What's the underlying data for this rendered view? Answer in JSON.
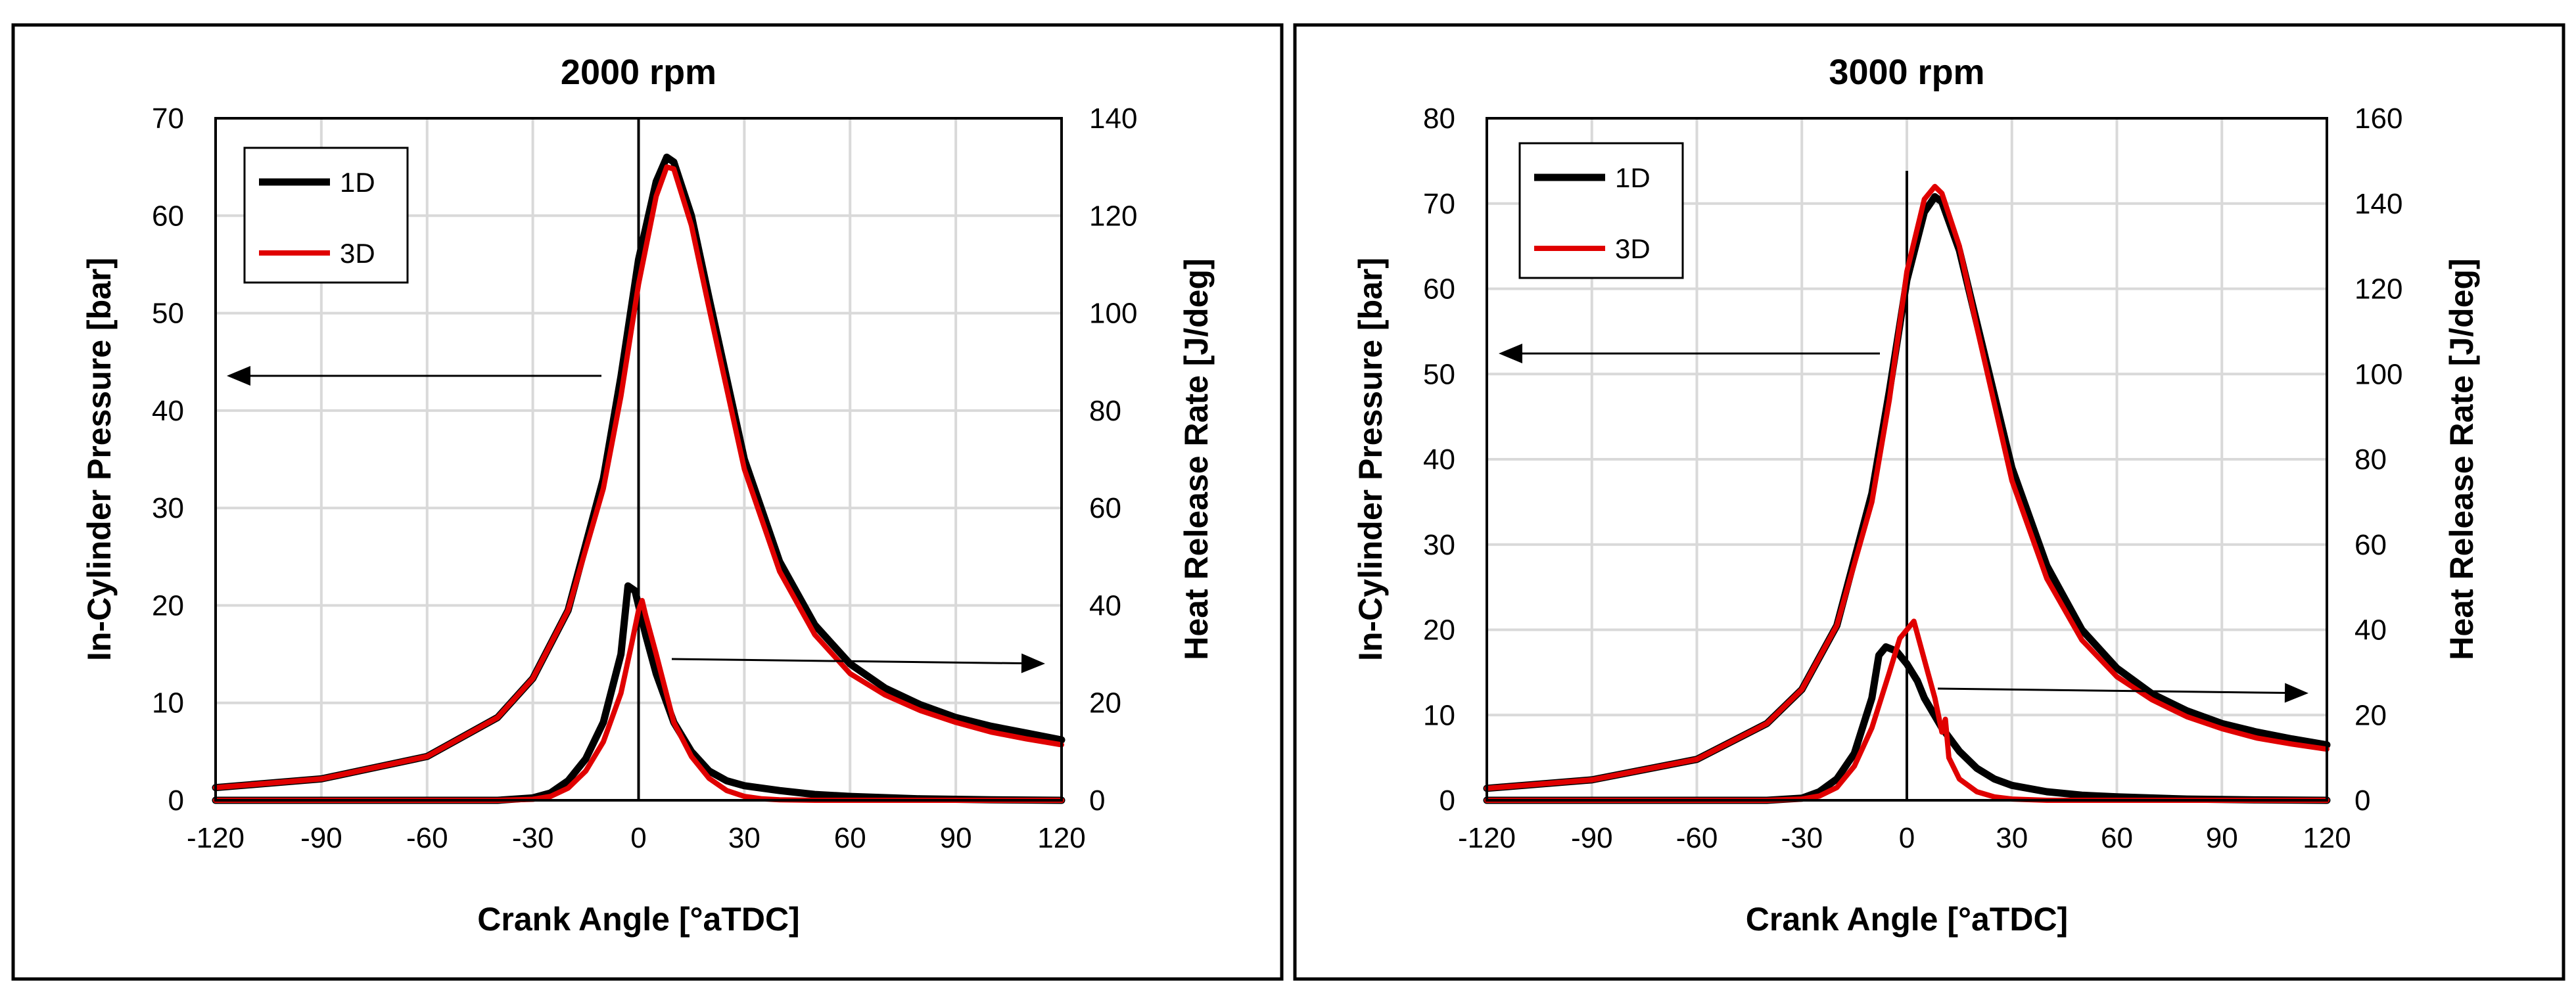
{
  "chart_data": [
    {
      "type": "line",
      "title": "2000 rpm",
      "xlabel": "Crank Angle [°aTDC]",
      "ylabel": "In-Cylinder Pressure [bar]",
      "y2label": "Heat Release Rate [J/deg]",
      "xlim": [
        -120,
        120
      ],
      "ylim": [
        0,
        70
      ],
      "y2lim": [
        0,
        140
      ],
      "xticks": [
        -120,
        -90,
        -60,
        -30,
        0,
        30,
        60,
        90,
        120
      ],
      "yticks": [
        0,
        10,
        20,
        30,
        40,
        50,
        60,
        70
      ],
      "y2ticks": [
        0,
        20,
        40,
        60,
        80,
        100,
        120,
        140
      ],
      "grid": true,
      "legend": {
        "position": "top-left",
        "entries": [
          "1D",
          "3D"
        ]
      },
      "annotations": [
        "arrow pointing to left axis (pressure curves)",
        "arrow pointing to right axis (heat release curves)"
      ],
      "series": [
        {
          "name": "1D",
          "quantity": "pressure",
          "axis": "left",
          "color": "#000000",
          "x": [
            -120,
            -90,
            -60,
            -40,
            -30,
            -20,
            -10,
            -5,
            0,
            5,
            8,
            10,
            15,
            20,
            30,
            40,
            50,
            60,
            70,
            80,
            90,
            100,
            110,
            120
          ],
          "y": [
            1.3,
            2.2,
            4.5,
            8.5,
            12.5,
            19.5,
            33,
            43.5,
            55.5,
            63.5,
            66,
            65.5,
            60,
            51.5,
            35,
            24.5,
            18,
            14,
            11.5,
            9.8,
            8.5,
            7.6,
            6.9,
            6.2
          ]
        },
        {
          "name": "3D",
          "quantity": "pressure",
          "axis": "left",
          "color": "#e00000",
          "x": [
            -120,
            -90,
            -60,
            -40,
            -30,
            -20,
            -10,
            -5,
            0,
            5,
            8,
            10,
            15,
            20,
            30,
            40,
            50,
            60,
            70,
            80,
            90,
            100,
            110,
            120
          ],
          "y": [
            1.3,
            2.2,
            4.5,
            8.5,
            12.5,
            19.5,
            32,
            41.5,
            53,
            62,
            65,
            64.8,
            59,
            50.5,
            34,
            23.5,
            17,
            13,
            10.8,
            9.2,
            8,
            7,
            6.3,
            5.7
          ]
        },
        {
          "name": "1D",
          "quantity": "heat release rate",
          "axis": "right",
          "color": "#000000",
          "x": [
            -120,
            -40,
            -30,
            -25,
            -20,
            -15,
            -10,
            -5,
            -3,
            -1,
            0,
            2,
            5,
            10,
            15,
            20,
            25,
            30,
            40,
            50,
            60,
            80,
            100,
            120
          ],
          "y": [
            0,
            0,
            0.5,
            1.5,
            4,
            8.5,
            16,
            30,
            44,
            43,
            40,
            34,
            26,
            16,
            10,
            6,
            4,
            3,
            2,
            1.2,
            0.8,
            0.3,
            0.1,
            0
          ]
        },
        {
          "name": "3D",
          "quantity": "heat release rate",
          "axis": "right",
          "color": "#e00000",
          "x": [
            -120,
            -40,
            -30,
            -25,
            -20,
            -15,
            -10,
            -5,
            -2,
            0,
            1,
            2,
            5,
            10,
            15,
            20,
            25,
            30,
            35,
            40,
            50,
            60,
            90,
            120
          ],
          "y": [
            0,
            0,
            0.2,
            0.8,
            2.5,
            6,
            12,
            22,
            32,
            39,
            41,
            38,
            30,
            16,
            9,
            4.5,
            2,
            0.8,
            0.3,
            0.1,
            0,
            0,
            0,
            0
          ]
        }
      ]
    },
    {
      "type": "line",
      "title": "3000 rpm",
      "xlabel": "Crank Angle [°aTDC]",
      "ylabel": "In-Cylinder Pressure [bar]",
      "y2label": "Heat Release Rate [J/deg]",
      "xlim": [
        -120,
        120
      ],
      "ylim": [
        0,
        80
      ],
      "y2lim": [
        0,
        160
      ],
      "xticks": [
        -120,
        -90,
        -60,
        -30,
        0,
        30,
        60,
        90,
        120
      ],
      "yticks": [
        0,
        10,
        20,
        30,
        40,
        50,
        60,
        70,
        80
      ],
      "y2ticks": [
        0,
        20,
        40,
        60,
        80,
        100,
        120,
        140,
        160
      ],
      "grid": true,
      "legend": {
        "position": "top-left",
        "entries": [
          "1D",
          "3D"
        ]
      },
      "annotations": [
        "arrow pointing to left axis (pressure curves)",
        "arrow pointing to right axis (heat release curves)"
      ],
      "series": [
        {
          "name": "1D",
          "quantity": "pressure",
          "axis": "left",
          "color": "#000000",
          "x": [
            -120,
            -90,
            -60,
            -40,
            -30,
            -20,
            -10,
            -5,
            0,
            5,
            8,
            10,
            15,
            20,
            30,
            40,
            50,
            60,
            70,
            80,
            90,
            100,
            110,
            120
          ],
          "y": [
            1.4,
            2.4,
            4.8,
            9,
            13,
            20.5,
            36,
            48,
            61,
            69,
            70.8,
            70.2,
            64.5,
            56,
            39,
            27.5,
            20,
            15.5,
            12.5,
            10.5,
            9,
            8,
            7.2,
            6.5
          ]
        },
        {
          "name": "3D",
          "quantity": "pressure",
          "axis": "left",
          "color": "#e00000",
          "x": [
            -120,
            -90,
            -60,
            -40,
            -30,
            -20,
            -10,
            -5,
            0,
            5,
            8,
            10,
            15,
            20,
            30,
            40,
            50,
            60,
            70,
            80,
            90,
            100,
            110,
            120
          ],
          "y": [
            1.4,
            2.4,
            4.8,
            9,
            13,
            20.5,
            35,
            47,
            62,
            70.5,
            72,
            71.2,
            65,
            55.5,
            37.5,
            26,
            18.8,
            14.5,
            11.8,
            9.8,
            8.4,
            7.3,
            6.6,
            6
          ]
        },
        {
          "name": "1D",
          "quantity": "heat release rate",
          "axis": "right",
          "color": "#000000",
          "x": [
            -120,
            -40,
            -30,
            -25,
            -20,
            -15,
            -10,
            -8,
            -6,
            -3,
            0,
            3,
            5,
            10,
            15,
            20,
            25,
            30,
            40,
            50,
            60,
            80,
            100,
            120
          ],
          "y": [
            0,
            0,
            0.5,
            2,
            5,
            11,
            24,
            34,
            36,
            35,
            32,
            28,
            24,
            17,
            11.5,
            7.5,
            5,
            3.5,
            2,
            1.2,
            0.8,
            0.3,
            0.1,
            0
          ]
        },
        {
          "name": "3D",
          "quantity": "heat release rate",
          "axis": "right",
          "color": "#e00000",
          "x": [
            -120,
            -40,
            -30,
            -25,
            -20,
            -15,
            -10,
            -5,
            -2,
            0,
            2,
            4,
            6,
            8,
            10,
            11,
            12,
            15,
            20,
            25,
            30,
            40,
            60,
            120
          ],
          "y": [
            0,
            0,
            0.3,
            1,
            3,
            8,
            17,
            30,
            38,
            40,
            42,
            36,
            30,
            24,
            16,
            19,
            10,
            5,
            2,
            0.8,
            0.3,
            0,
            0,
            0
          ]
        }
      ]
    }
  ]
}
